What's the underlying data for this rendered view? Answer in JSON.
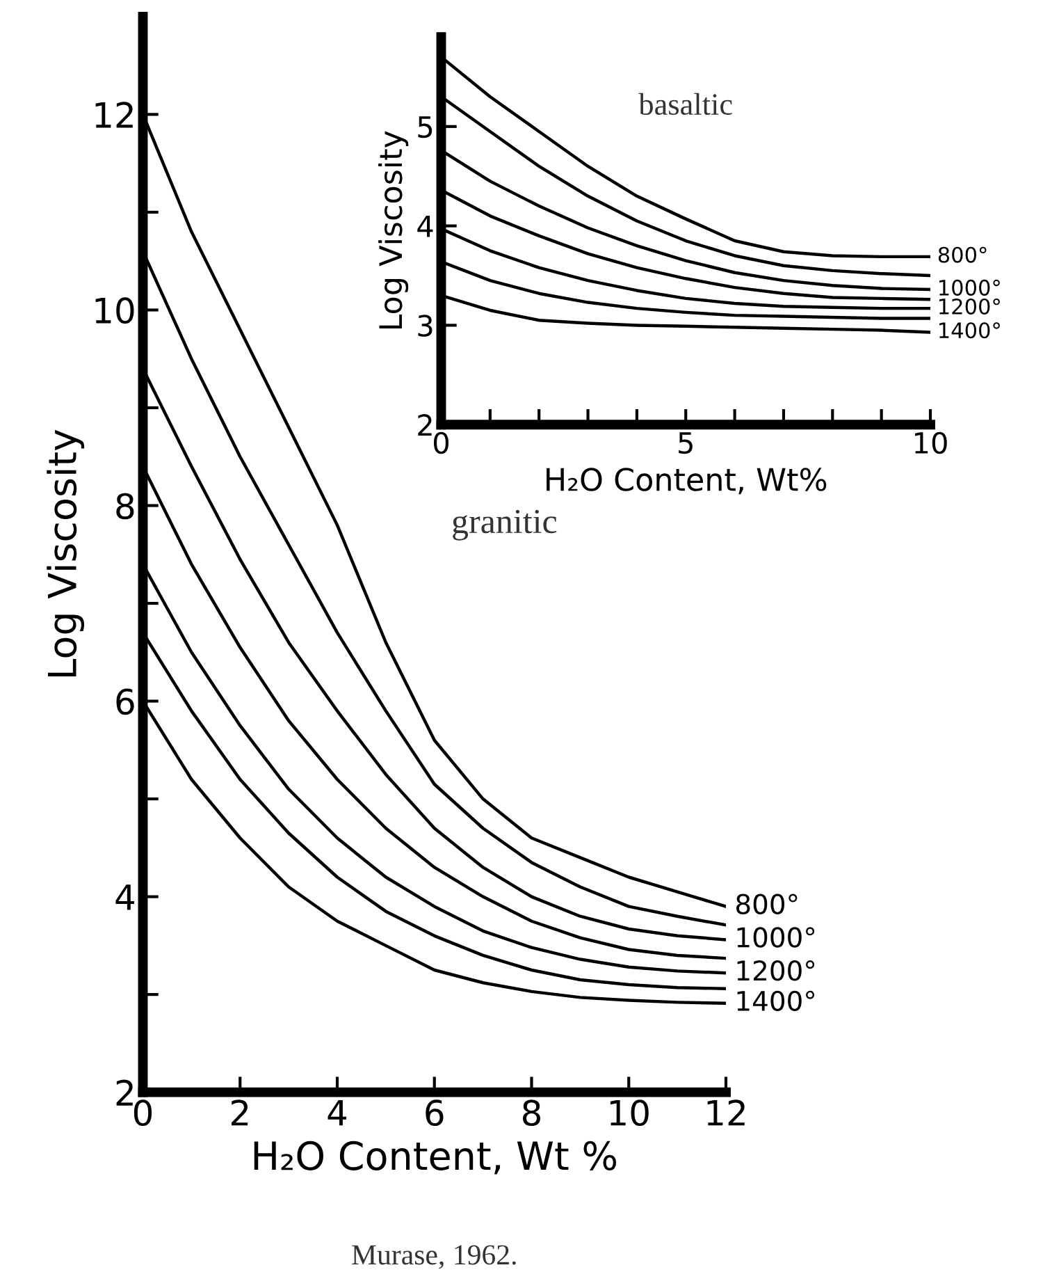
{
  "chart_data": [
    {
      "type": "line",
      "xlabel": "H₂O Content, Wt %",
      "ylabel": "Log Viscosity",
      "annotations": [
        "granitic",
        "Murase, 1962."
      ],
      "x": [
        0,
        1,
        2,
        3,
        4,
        5,
        6,
        7,
        8,
        9,
        10,
        11,
        12
      ],
      "xlim": [
        0,
        12
      ],
      "xticks": [
        0,
        2,
        4,
        6,
        8,
        10,
        12
      ],
      "ylim": [
        2,
        13
      ],
      "yticks": [
        2,
        {
          "value": 3,
          "label": null
        },
        4,
        {
          "value": 5,
          "label": null
        },
        6,
        {
          "value": 7,
          "label": null
        },
        8,
        {
          "value": 9,
          "label": null
        },
        10,
        {
          "value": 11,
          "label": null
        },
        12
      ],
      "grid": false,
      "legend": false,
      "marker": "none",
      "line_style": "solid",
      "series": [
        {
          "name": "800°",
          "color": "#000000",
          "values": [
            12.0,
            10.8,
            9.8,
            8.8,
            7.8,
            6.6,
            5.6,
            5.0,
            4.6,
            4.4,
            4.2,
            4.05,
            3.9
          ]
        },
        {
          "color": "#000000",
          "values": [
            10.6,
            9.5,
            8.5,
            7.6,
            6.7,
            5.9,
            5.15,
            4.7,
            4.35,
            4.1,
            3.9,
            3.8,
            3.71
          ]
        },
        {
          "name": "1000°",
          "color": "#000000",
          "values": [
            9.4,
            8.4,
            7.45,
            6.6,
            5.9,
            5.25,
            4.7,
            4.3,
            4.0,
            3.8,
            3.67,
            3.6,
            3.56
          ]
        },
        {
          "color": "#000000",
          "values": [
            8.4,
            7.4,
            6.55,
            5.8,
            5.2,
            4.7,
            4.3,
            4.0,
            3.75,
            3.58,
            3.46,
            3.4,
            3.37
          ]
        },
        {
          "name": "1200°",
          "color": "#000000",
          "values": [
            7.4,
            6.5,
            5.75,
            5.1,
            4.6,
            4.2,
            3.9,
            3.65,
            3.48,
            3.36,
            3.28,
            3.24,
            3.22
          ]
        },
        {
          "color": "#000000",
          "values": [
            6.7,
            5.9,
            5.2,
            4.65,
            4.2,
            3.85,
            3.6,
            3.4,
            3.25,
            3.15,
            3.1,
            3.07,
            3.06
          ]
        },
        {
          "name": "1400°",
          "color": "#000000",
          "values": [
            6.0,
            5.2,
            4.6,
            4.1,
            3.75,
            3.5,
            3.25,
            3.12,
            3.03,
            2.97,
            2.94,
            2.92,
            2.91
          ]
        }
      ]
    },
    {
      "type": "line",
      "xlabel": "H₂O Content, Wt%",
      "ylabel": "Log Viscosity",
      "annotations": [
        "basaltic"
      ],
      "x": [
        0,
        1,
        2,
        3,
        4,
        5,
        6,
        7,
        8,
        9,
        10
      ],
      "xlim": [
        0,
        10
      ],
      "xticks": [
        0,
        {
          "value": 1,
          "label": null
        },
        {
          "value": 2,
          "label": null
        },
        {
          "value": 3,
          "label": null
        },
        {
          "value": 4,
          "label": null
        },
        5,
        {
          "value": 6,
          "label": null
        },
        {
          "value": 7,
          "label": null
        },
        {
          "value": 8,
          "label": null
        },
        {
          "value": 9,
          "label": null
        },
        10
      ],
      "ylim": [
        2,
        5.9
      ],
      "yticks": [
        2,
        3,
        4,
        5
      ],
      "grid": false,
      "legend": false,
      "marker": "none",
      "line_style": "solid",
      "series": [
        {
          "name": "800°",
          "color": "#000000",
          "values": [
            5.7,
            5.3,
            4.95,
            4.6,
            4.3,
            4.07,
            3.85,
            3.74,
            3.7,
            3.69,
            3.69
          ]
        },
        {
          "color": "#000000",
          "values": [
            5.3,
            4.95,
            4.6,
            4.3,
            4.05,
            3.85,
            3.7,
            3.6,
            3.55,
            3.52,
            3.5
          ]
        },
        {
          "name": "1000°",
          "color": "#000000",
          "values": [
            4.76,
            4.45,
            4.2,
            3.98,
            3.8,
            3.65,
            3.53,
            3.45,
            3.4,
            3.37,
            3.36
          ]
        },
        {
          "color": "#000000",
          "values": [
            4.36,
            4.1,
            3.9,
            3.72,
            3.58,
            3.47,
            3.38,
            3.32,
            3.28,
            3.27,
            3.26
          ]
        },
        {
          "name": "1200°",
          "color": "#000000",
          "values": [
            3.97,
            3.75,
            3.58,
            3.45,
            3.35,
            3.27,
            3.22,
            3.19,
            3.18,
            3.17,
            3.17
          ]
        },
        {
          "color": "#000000",
          "values": [
            3.64,
            3.45,
            3.32,
            3.23,
            3.17,
            3.13,
            3.1,
            3.09,
            3.08,
            3.07,
            3.07
          ]
        },
        {
          "name": "1400°",
          "color": "#000000",
          "values": [
            3.3,
            3.15,
            3.05,
            3.02,
            3.0,
            2.99,
            2.98,
            2.97,
            2.96,
            2.95,
            2.93
          ]
        }
      ]
    }
  ]
}
